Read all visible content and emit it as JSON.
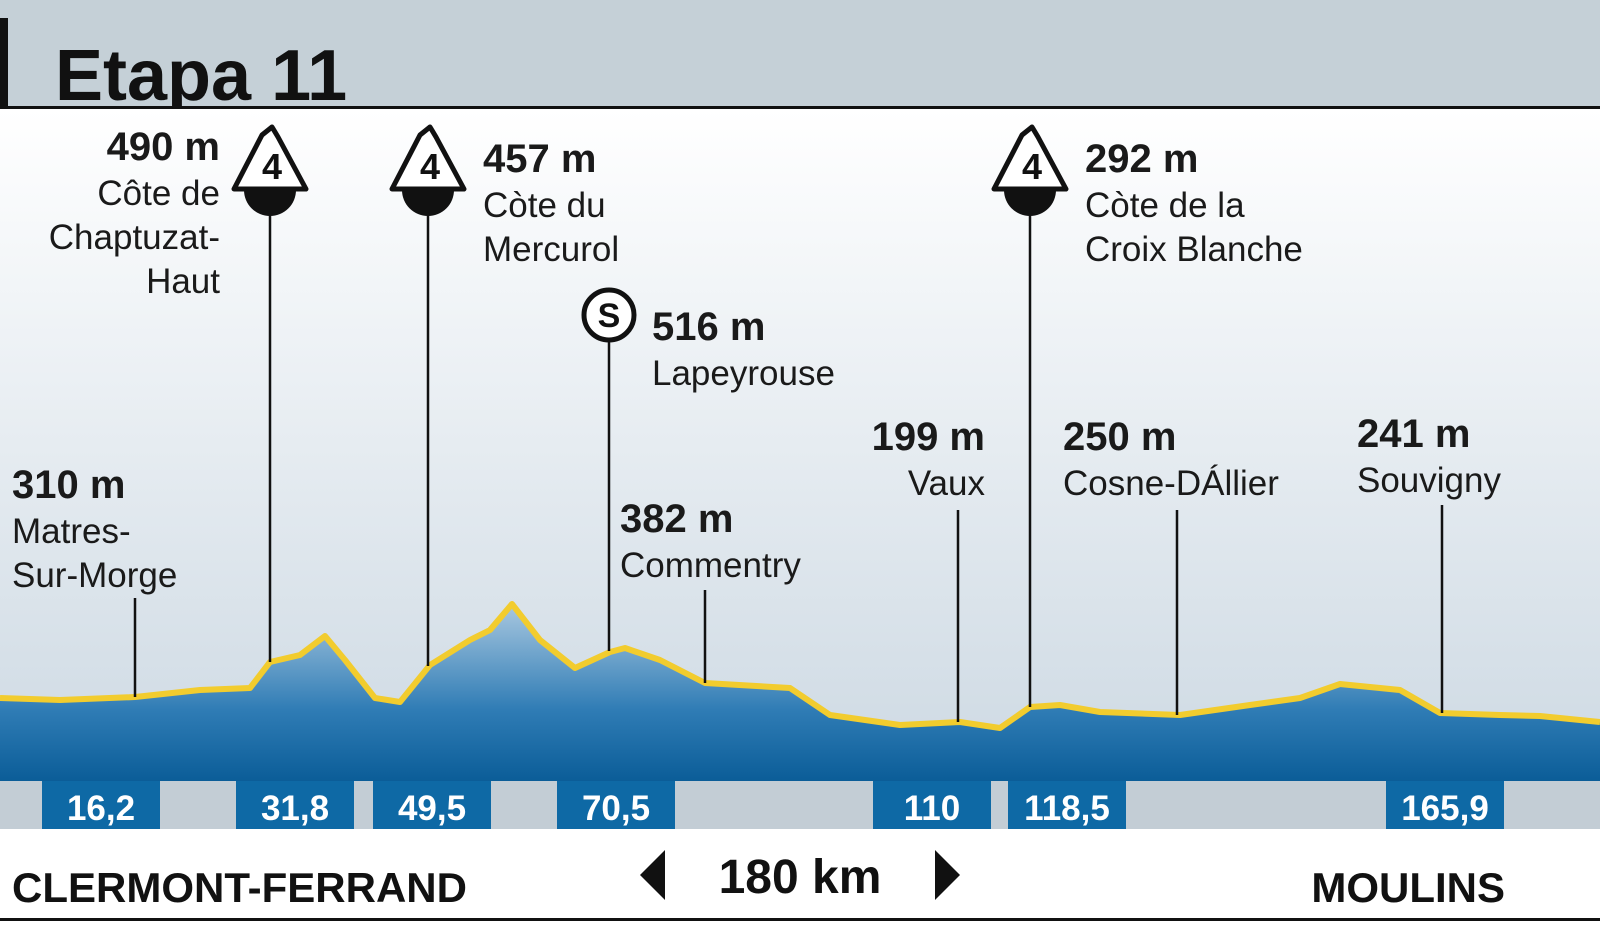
{
  "header": {
    "title": "Etapa 11"
  },
  "points": [
    {
      "altitude": "310 m",
      "name_lines": [
        "Matres-",
        "Sur-Morge"
      ]
    },
    {
      "altitude": "490 m",
      "name_lines": [
        "Côte de",
        "Chaptuzat-",
        "Haut"
      ],
      "category": "4"
    },
    {
      "altitude": "457 m",
      "name_lines": [
        "Còte du",
        "Mercurol"
      ],
      "category": "4"
    },
    {
      "altitude": "516 m",
      "name_lines": [
        "Lapeyrouse"
      ],
      "category": "S"
    },
    {
      "altitude": "382 m",
      "name_lines": [
        "Commentry"
      ]
    },
    {
      "altitude": "199 m",
      "name_lines": [
        "Vaux"
      ]
    },
    {
      "altitude": "250 m",
      "name_lines": [
        "Cosne-DÁllier"
      ]
    },
    {
      "altitude": "292 m",
      "name_lines": [
        "Còte de la",
        "Croix Blanche"
      ],
      "category": "4"
    },
    {
      "altitude": "241 m",
      "name_lines": [
        "Souvigny"
      ]
    }
  ],
  "distances": [
    "16,2",
    "31,8",
    "49,5",
    "70,5",
    "110",
    "118,5",
    "165,9"
  ],
  "footer": {
    "start": "CLERMONT-FERRAND",
    "length": "180 km",
    "finish": "MOULINS"
  }
}
